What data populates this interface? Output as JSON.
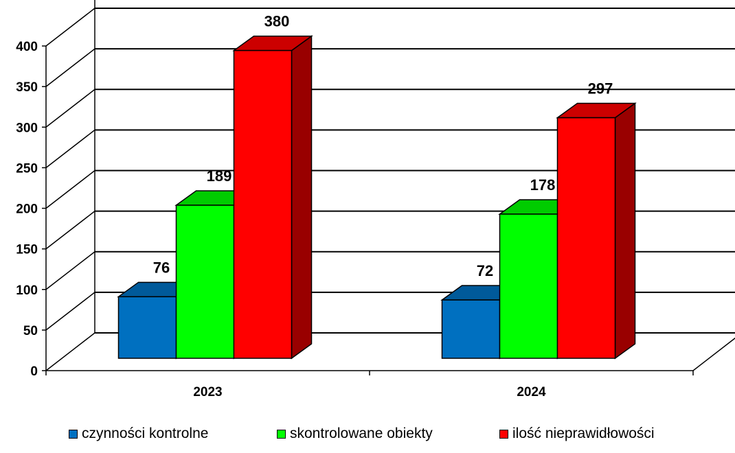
{
  "chart_data": {
    "type": "bar",
    "categories": [
      "2023",
      "2024"
    ],
    "series": [
      {
        "name": "czynności kontrolne",
        "values": [
          76,
          72
        ],
        "color": "#0070C0"
      },
      {
        "name": "skontrolowane obiekty",
        "values": [
          189,
          178
        ],
        "color": "#00FF00"
      },
      {
        "name": "ilość nieprawidłowości",
        "values": [
          380,
          297
        ],
        "color": "#FF0000"
      }
    ],
    "yticks": [
      "0",
      "50",
      "100",
      "150",
      "200",
      "250",
      "300",
      "350",
      "400"
    ],
    "ylim": [
      0,
      400
    ],
    "grid": true,
    "three_d": true,
    "legend_position": "bottom",
    "title": "",
    "xlabel": "",
    "ylabel": ""
  }
}
